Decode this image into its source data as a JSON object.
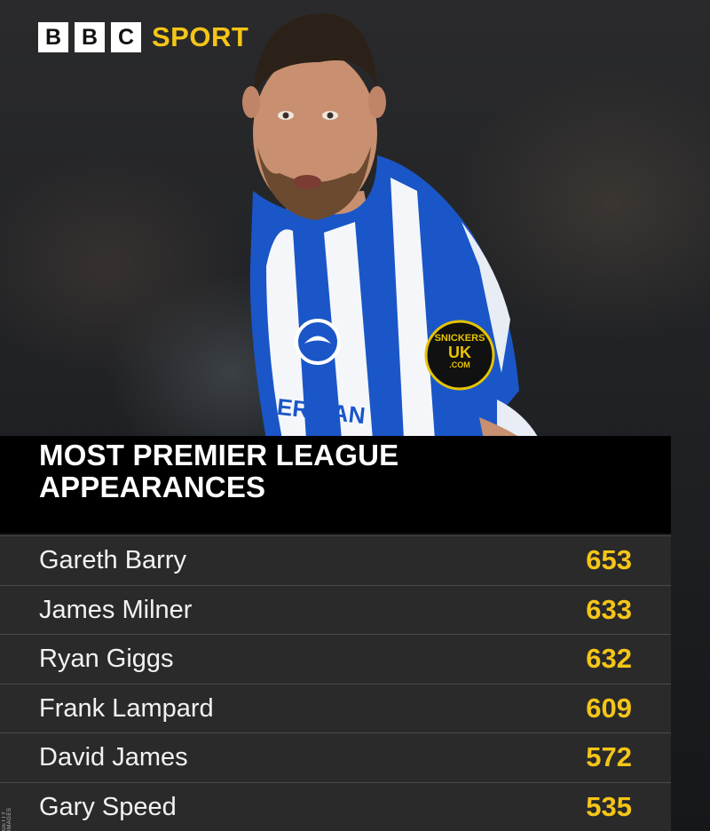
{
  "logo": {
    "letters": [
      "B",
      "B",
      "C"
    ],
    "sport": "SPORT"
  },
  "title": {
    "line1": "MOST PREMIER LEAGUE",
    "line2": "APPEARANCES"
  },
  "badge_text": {
    "line1": "SNICKERS",
    "line2": "UK",
    "line3": ".COM"
  },
  "shirt_text": "ERICAN",
  "rows": [
    {
      "name": "Gareth Barry",
      "value": "653"
    },
    {
      "name": "James Milner",
      "value": "633"
    },
    {
      "name": "Ryan Giggs",
      "value": "632"
    },
    {
      "name": "Frank Lampard",
      "value": "609"
    },
    {
      "name": "David James",
      "value": "572"
    },
    {
      "name": "Gary Speed",
      "value": "535"
    }
  ],
  "credit": "GETTY IMAGES",
  "colors": {
    "accent": "#f5c518",
    "row_bg": "#2a2a2a",
    "title_bg": "#000000",
    "shirt_blue": "#1a56c8"
  }
}
